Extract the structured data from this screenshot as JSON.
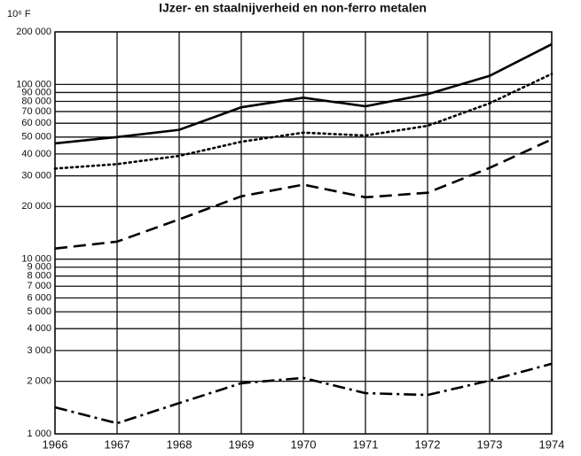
{
  "chart_data": {
    "type": "line",
    "title": "IJzer- en staalnijverheid en non-ferro metalen",
    "y_label": "10⁶ F",
    "x": [
      1966,
      1967,
      1968,
      1969,
      1970,
      1971,
      1972,
      1973,
      1974
    ],
    "xlim": [
      1966,
      1974
    ],
    "xticks": [
      1966,
      1967,
      1968,
      1969,
      1970,
      1971,
      1972,
      1973,
      1974
    ],
    "log_y": true,
    "ylim": [
      1000,
      200000
    ],
    "yticks": [
      {
        "value": 1000,
        "label": "1 000"
      },
      {
        "value": 2000,
        "label": "2 000"
      },
      {
        "value": 3000,
        "label": "3 000"
      },
      {
        "value": 4000,
        "label": "4 000"
      },
      {
        "value": 5000,
        "label": "5 000"
      },
      {
        "value": 6000,
        "label": "6 000"
      },
      {
        "value": 7000,
        "label": "7 000"
      },
      {
        "value": 8000,
        "label": "8 000"
      },
      {
        "value": 9000,
        "label": "9 000"
      },
      {
        "value": 10000,
        "label": "10 000"
      },
      {
        "value": 20000,
        "label": "20 000"
      },
      {
        "value": 30000,
        "label": "30 000"
      },
      {
        "value": 40000,
        "label": "40 000"
      },
      {
        "value": 50000,
        "label": "50 000"
      },
      {
        "value": 60000,
        "label": "60 000"
      },
      {
        "value": 70000,
        "label": "70 000"
      },
      {
        "value": 80000,
        "label": "80 000"
      },
      {
        "value": 90000,
        "label": "90 000"
      },
      {
        "value": 100000,
        "label": "100 000"
      },
      {
        "value": 200000,
        "label": "200 000"
      }
    ],
    "grid": true,
    "series": [
      {
        "color": "#000000",
        "dash": "solid",
        "values": [
          46000,
          50000,
          55000,
          74000,
          84000,
          75000,
          88000,
          112000,
          170000
        ]
      },
      {
        "color": "#000000",
        "dash": "dotted",
        "values": [
          33000,
          35000,
          39000,
          47000,
          53000,
          51000,
          58000,
          78000,
          115000
        ]
      },
      {
        "color": "#000000",
        "dash": "dashed",
        "values": [
          11500,
          12600,
          16900,
          22900,
          26700,
          22600,
          24000,
          33300,
          48500
        ]
      },
      {
        "color": "#000000",
        "dash": "dashdot",
        "values": [
          1420,
          1150,
          1500,
          1950,
          2090,
          1710,
          1670,
          2020,
          2520
        ]
      }
    ]
  }
}
